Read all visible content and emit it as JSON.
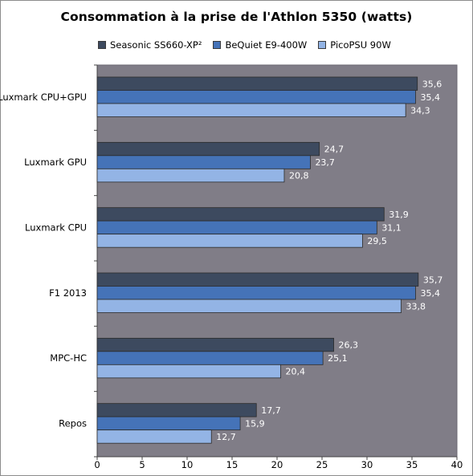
{
  "chart_data": {
    "type": "bar",
    "orientation": "horizontal",
    "title": "Consommation à la prise de l'Athlon 5350 (watts)",
    "categories": [
      "Luxmark CPU+GPU",
      "Luxmark GPU",
      "Luxmark CPU",
      "F1 2013",
      "MPC-HC",
      "Repos"
    ],
    "series": [
      {
        "name": "Seasonic SS660-XP²",
        "color": "#3d4a5f",
        "values": [
          35.6,
          24.7,
          31.9,
          35.7,
          26.3,
          17.7
        ],
        "labels": [
          "35,6",
          "24,7",
          "31,9",
          "35,7",
          "26,3",
          "17,7"
        ]
      },
      {
        "name": "BeQuiet E9-400W",
        "color": "#4573b8",
        "values": [
          35.4,
          23.7,
          31.1,
          35.4,
          25.1,
          15.9
        ],
        "labels": [
          "35,4",
          "23,7",
          "31,1",
          "35,4",
          "25,1",
          "15,9"
        ]
      },
      {
        "name": "PicoPSU 90W",
        "color": "#93b4e5",
        "values": [
          34.3,
          20.8,
          29.5,
          33.8,
          20.4,
          12.7
        ],
        "labels": [
          "34,3",
          "20,8",
          "29,5",
          "33,8",
          "20,4",
          "12,7"
        ]
      }
    ],
    "xlim": [
      0,
      40
    ],
    "xticks": [
      "0",
      "5",
      "10",
      "15",
      "20",
      "25",
      "30",
      "35",
      "40"
    ],
    "xlabel": "",
    "ylabel": "",
    "legend_position": "top",
    "plot_background": "#807d87",
    "grid": false
  }
}
